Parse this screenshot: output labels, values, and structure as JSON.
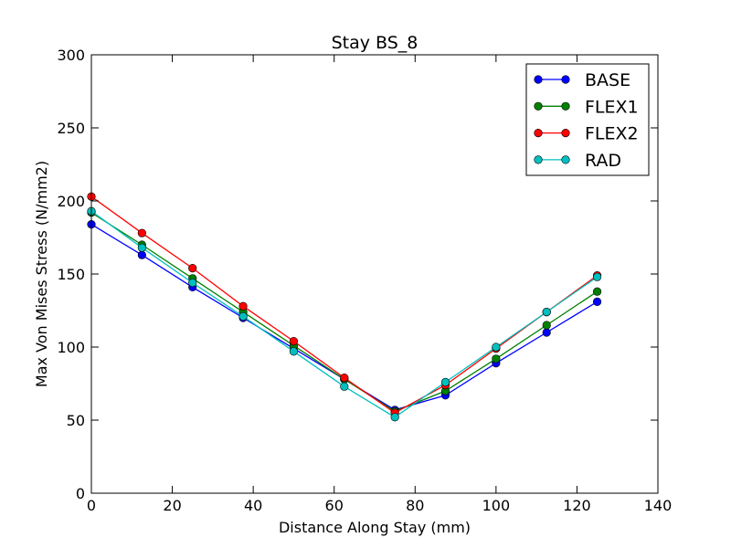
{
  "chart_data": {
    "type": "line",
    "title": "Stay BS_8",
    "xlabel": "Distance Along Stay (mm)",
    "ylabel": "Max Von Mises Stress (N/mm2)",
    "xlim": [
      0,
      140
    ],
    "ylim": [
      0,
      300
    ],
    "xticks": [
      "0",
      "20",
      "40",
      "60",
      "80",
      "100",
      "120",
      "140"
    ],
    "yticks": [
      "0",
      "50",
      "100",
      "150",
      "200",
      "250",
      "300"
    ],
    "x": [
      0,
      12.5,
      25,
      37.5,
      50,
      62.5,
      75,
      87.5,
      100,
      112.5,
      125
    ],
    "legend_position": "top-right",
    "grid": false,
    "series": [
      {
        "name": "BASE",
        "color": "#0000ff",
        "values": [
          184,
          163,
          141,
          120,
          99,
          78,
          57,
          67,
          89,
          110,
          131
        ]
      },
      {
        "name": "FLEX1",
        "color": "#008000",
        "values": [
          192,
          170,
          147,
          124,
          101,
          78,
          56,
          70,
          92,
          115,
          138
        ]
      },
      {
        "name": "FLEX2",
        "color": "#ff0000",
        "values": [
          203,
          178,
          154,
          128,
          104,
          79,
          55,
          74,
          99,
          124,
          149
        ]
      },
      {
        "name": "RAD",
        "color": "#00bfbf",
        "values": [
          193,
          168,
          144,
          121,
          97,
          73,
          52,
          76,
          100,
          124,
          148
        ]
      }
    ]
  }
}
